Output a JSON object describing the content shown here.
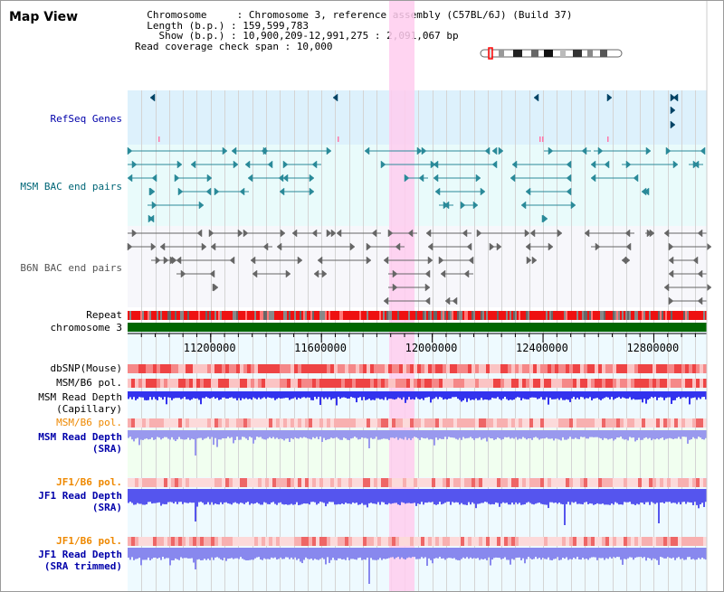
{
  "title": "Map View",
  "info": {
    "lines": [
      "  Chromosome     : Chromosome 3, reference assembly (C57BL/6J) (Build 37)",
      "  Length (b.p.) : 159,599,783",
      "    Show (b.p.) : 10,900,209-12,991,275 : 2,091,067 bp",
      "Read coverage check span : 10,000"
    ]
  },
  "tracks": {
    "refseq": "RefSeq Genes",
    "msm_bac": "MSM BAC end pairs",
    "b6n_bac": "B6N BAC end pairs",
    "repeat": "Repeat",
    "chromosome": "chromosome 3",
    "dbsnp": "dbSNP(Mouse)",
    "msm_b6_pol": "MSM/B6 pol.",
    "msm_depth_cap_1": "MSM Read Depth",
    "msm_depth_cap_2": "(Capillary)",
    "msm_b6_pol_2": "MSM/B6 pol.",
    "msm_depth_sra_1": "MSM Read Depth",
    "msm_depth_sra_2": "(SRA)",
    "jf1_b6_pol": "JF1/B6 pol.",
    "jf1_depth_sra_1": "JF1 Read Depth",
    "jf1_depth_sra_2": "(SRA)",
    "jf1_b6_pol_2": "JF1/B6 pol.",
    "jf1_depth_tr_1": "JF1 Read Depth",
    "jf1_depth_tr_2": "(SRA trimmed)"
  },
  "axis": {
    "ticks": [
      "11200000",
      "11600000",
      "12000000",
      "12400000",
      "12800000"
    ],
    "tick_values": [
      11200000,
      11600000,
      12000000,
      12400000,
      12800000
    ],
    "start": 10900209,
    "end": 12991275
  },
  "colors": {
    "refseq_text": "#0000aa",
    "msm_bac_text": "#006677",
    "b6n_bac_text": "#555555",
    "pol_orange": "#ee8800",
    "depth_blue": "#0000aa",
    "highlight": "#ffccee",
    "chromosome_green": "#006600",
    "depth_bar": "#5555ee"
  },
  "highlight_range": [
    11843000,
    11935000
  ]
}
